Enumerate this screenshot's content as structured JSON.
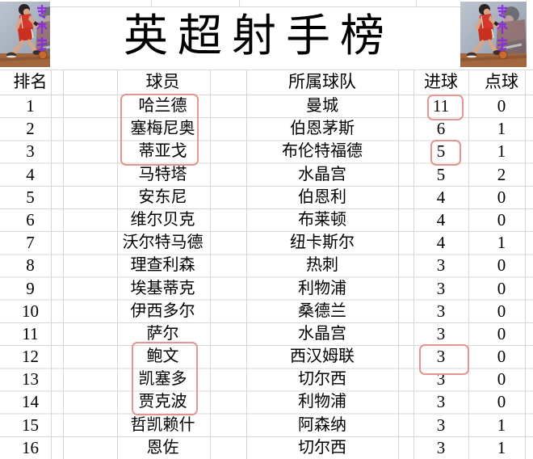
{
  "title": "英超射手榜",
  "table": {
    "headers": {
      "rank": "排名",
      "player": "球员",
      "team": "所属球队",
      "goals": "进球",
      "penalties": "点球"
    },
    "rows": [
      {
        "rank": "1",
        "player": "哈兰德",
        "team": "曼城",
        "goals": "11",
        "penalties": "0"
      },
      {
        "rank": "2",
        "player": "塞梅尼奥",
        "team": "伯恩茅斯",
        "goals": "6",
        "penalties": "1"
      },
      {
        "rank": "3",
        "player": "蒂亚戈",
        "team": "布伦特福德",
        "goals": "5",
        "penalties": "1"
      },
      {
        "rank": "4",
        "player": "马特塔",
        "team": "水晶宫",
        "goals": "5",
        "penalties": "2"
      },
      {
        "rank": "5",
        "player": "安东尼",
        "team": "伯恩利",
        "goals": "4",
        "penalties": "0"
      },
      {
        "rank": "6",
        "player": "维尔贝克",
        "team": "布莱顿",
        "goals": "4",
        "penalties": "0"
      },
      {
        "rank": "7",
        "player": "沃尔特马德",
        "team": "纽卡斯尔",
        "goals": "4",
        "penalties": "1"
      },
      {
        "rank": "8",
        "player": "理查利森",
        "team": "热刺",
        "goals": "3",
        "penalties": "0"
      },
      {
        "rank": "9",
        "player": "埃基蒂克",
        "team": "利物浦",
        "goals": "3",
        "penalties": "0"
      },
      {
        "rank": "10",
        "player": "伊西多尔",
        "team": "桑德兰",
        "goals": "3",
        "penalties": "0"
      },
      {
        "rank": "11",
        "player": "萨尔",
        "team": "水晶宫",
        "goals": "3",
        "penalties": "0"
      },
      {
        "rank": "12",
        "player": "鲍文",
        "team": "西汉姆联",
        "goals": "3",
        "penalties": "0"
      },
      {
        "rank": "13",
        "player": "凯塞多",
        "team": "切尔西",
        "goals": "3",
        "penalties": "0"
      },
      {
        "rank": "14",
        "player": "贾克波",
        "team": "利物浦",
        "goals": "3",
        "penalties": "0"
      },
      {
        "rank": "15",
        "player": "哲凯赖什",
        "team": "阿森纳",
        "goals": "3",
        "penalties": "1"
      },
      {
        "rank": "16",
        "player": "恩佐",
        "team": "切尔西",
        "goals": "3",
        "penalties": "1"
      }
    ]
  },
  "annotations": {
    "highlight_color": "#e69490",
    "highlighted_players": [
      "哈兰德",
      "塞梅尼奥",
      "蒂亚戈",
      "鲍文",
      "凯塞多",
      "贾克波"
    ],
    "highlighted_goal_values": [
      "11",
      "5",
      "3"
    ]
  },
  "decor": {
    "corner_image": "basketball-player-red-jersey-art",
    "watermark_color": "#8b2be0",
    "gridline_color": "#d7d7d7"
  }
}
